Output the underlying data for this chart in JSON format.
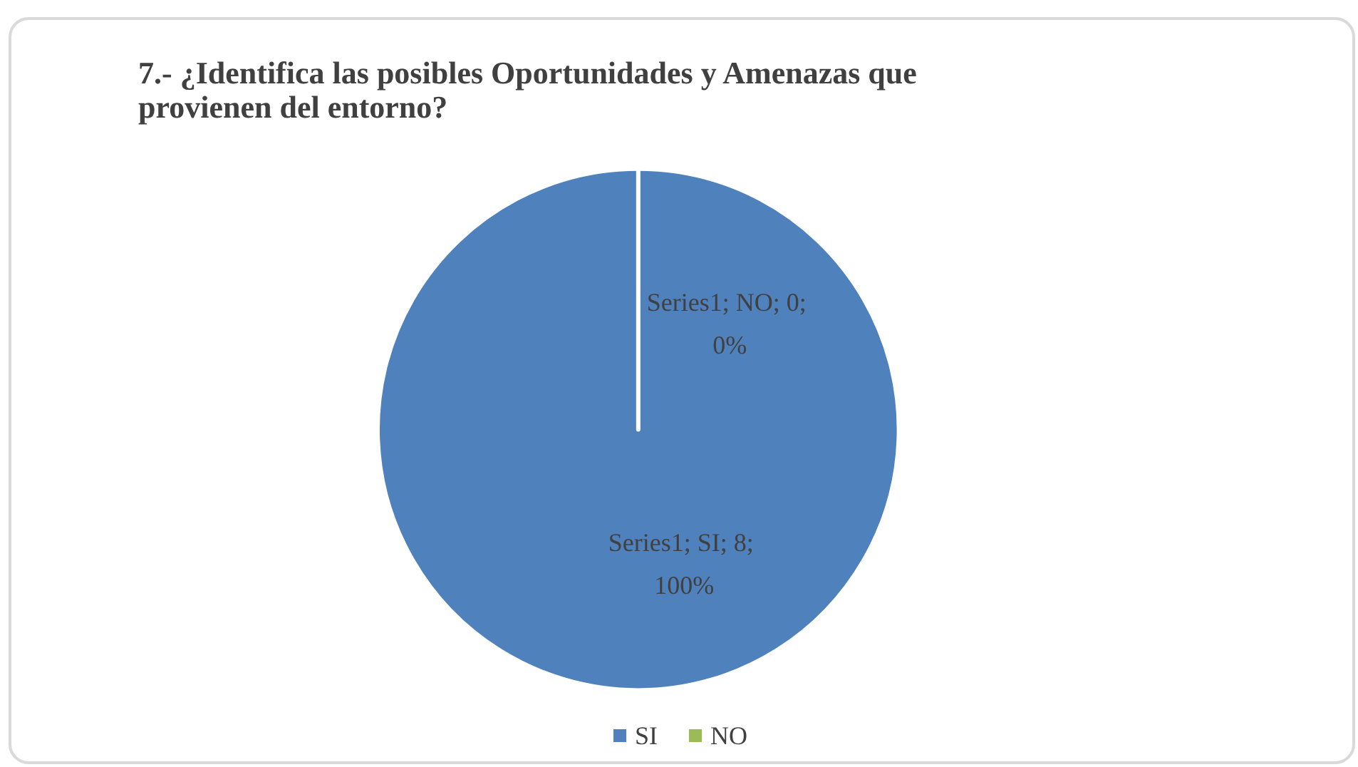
{
  "chart_data": {
    "type": "pie",
    "title": "7.- ¿Identifica las posibles Oportunidades y Amenazas que provienen del entorno?",
    "categories": [
      "SI",
      "NO"
    ],
    "values": [
      8,
      0
    ],
    "colors": [
      "#4f81bd",
      "#9bbb59"
    ],
    "value_labels": [
      "Series1; SI; 8; 100%",
      "Series1; NO; 0; 0%"
    ],
    "legend": "bottom"
  }
}
